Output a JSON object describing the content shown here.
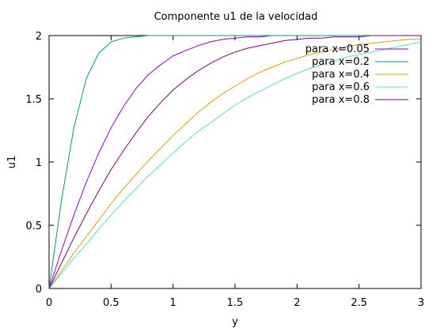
{
  "chart_data": {
    "type": "line",
    "title": "Componente u1 de la velocidad",
    "xlabel": "y",
    "ylabel": "u1",
    "xlim": [
      0,
      3
    ],
    "ylim": [
      0,
      2
    ],
    "xticks": [
      "0",
      "0.5",
      "1",
      "1.5",
      "2",
      "2.5",
      "3"
    ],
    "yticks": [
      "0",
      "0.5",
      "1",
      "1.5",
      "2"
    ],
    "grid": false,
    "legend_position": "top-right",
    "x": [
      0,
      0.1,
      0.2,
      0.3,
      0.4,
      0.5,
      0.6,
      0.7,
      0.8,
      0.9,
      1.0,
      1.1,
      1.2,
      1.3,
      1.4,
      1.5,
      1.6,
      1.7,
      1.8,
      1.9,
      2.0,
      2.1,
      2.2,
      2.3,
      2.4,
      2.5,
      2.6,
      2.7,
      2.8,
      2.9,
      3.0
    ],
    "series": [
      {
        "name": "para x=0.05",
        "color": "#9400d3",
        "values": [
          0,
          0.3,
          0.58,
          0.84,
          1.07,
          1.27,
          1.44,
          1.58,
          1.69,
          1.77,
          1.84,
          1.88,
          1.92,
          1.95,
          1.97,
          1.98,
          1.99,
          1.99,
          2.0,
          2.0,
          2.0,
          2.0,
          2.0,
          2.0,
          2.0,
          2.0,
          2.0,
          2.0,
          2.0,
          2.0,
          2.0
        ]
      },
      {
        "name": "para x=0.2",
        "color": "#009e73",
        "values": [
          0,
          0.7,
          1.27,
          1.66,
          1.86,
          1.95,
          1.98,
          1.99,
          2.0,
          2.0,
          2.0,
          2.0,
          2.0,
          2.0,
          2.0,
          2.0,
          2.0,
          2.0,
          2.0,
          2.0,
          2.0,
          2.0,
          2.0,
          2.0,
          2.0,
          2.0,
          2.0,
          2.0,
          2.0,
          2.0,
          2.0
        ]
      },
      {
        "name": "para x=0.4",
        "color": "#e69f00",
        "values": [
          0,
          0.14,
          0.28,
          0.41,
          0.54,
          0.67,
          0.79,
          0.9,
          1.01,
          1.11,
          1.21,
          1.3,
          1.39,
          1.47,
          1.54,
          1.6,
          1.66,
          1.71,
          1.75,
          1.79,
          1.82,
          1.85,
          1.87,
          1.89,
          1.91,
          1.93,
          1.94,
          1.95,
          1.96,
          1.97,
          1.97
        ]
      },
      {
        "name": "para x=0.6",
        "color": "#56e0c8",
        "values": [
          0,
          0.12,
          0.24,
          0.35,
          0.47,
          0.58,
          0.69,
          0.79,
          0.89,
          0.98,
          1.07,
          1.16,
          1.24,
          1.31,
          1.38,
          1.45,
          1.51,
          1.56,
          1.61,
          1.66,
          1.7,
          1.74,
          1.77,
          1.8,
          1.83,
          1.85,
          1.87,
          1.89,
          1.91,
          1.93,
          1.95
        ]
      },
      {
        "name": "para x=0.8",
        "color": "#800080",
        "values": [
          0,
          0.2,
          0.4,
          0.59,
          0.77,
          0.94,
          1.09,
          1.23,
          1.36,
          1.47,
          1.57,
          1.65,
          1.72,
          1.78,
          1.83,
          1.87,
          1.9,
          1.92,
          1.94,
          1.96,
          1.97,
          1.98,
          1.98,
          1.99,
          1.99,
          1.99,
          2.0,
          2.0,
          2.0,
          2.0,
          2.0
        ]
      }
    ]
  }
}
